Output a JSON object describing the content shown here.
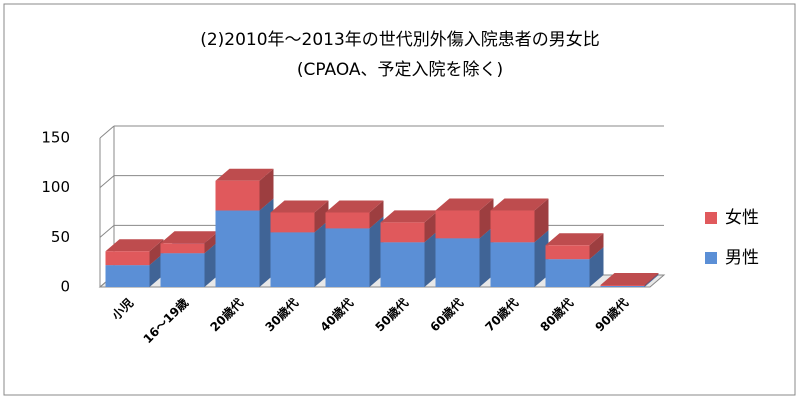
{
  "chart_data": {
    "type": "bar3d-stacked",
    "title": "(2)2010年～2013年の世代別外傷入院患者の男女比",
    "subtitle": "(CPAOA、予定入院を除く)",
    "categories": [
      "小児",
      "16～19歳",
      "20歳代",
      "30歳代",
      "40歳代",
      "50歳代",
      "60歳代",
      "70歳代",
      "80歳代",
      "90歳代"
    ],
    "series": [
      {
        "name": "男性",
        "color": "#5b8fd6",
        "values": [
          22,
          34,
          77,
          55,
          59,
          45,
          49,
          45,
          28,
          1
        ]
      },
      {
        "name": "女性",
        "color": "#e0595c",
        "values": [
          14,
          10,
          30,
          20,
          16,
          20,
          28,
          32,
          14,
          1
        ]
      }
    ],
    "ylim": [
      0,
      150
    ],
    "yticks": [
      0,
      50,
      100,
      150
    ],
    "grid": true,
    "legend": "right"
  }
}
